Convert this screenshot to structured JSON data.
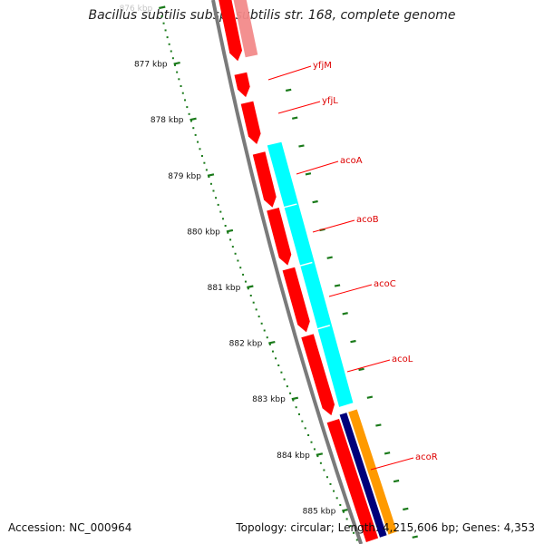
{
  "title": "Bacillus subtilis subsp. subtilis str. 168, complete genome",
  "footer": {
    "accession": "Accession: NC_000964",
    "summary": "Topology: circular; Length: 4,215,606 bp; Genes: 4,353"
  },
  "ruler": {
    "labels": [
      "876 kbp",
      "877 kbp",
      "878 kbp",
      "879 kbp",
      "880 kbp",
      "881 kbp",
      "882 kbp",
      "883 kbp",
      "884 kbp",
      "885 kbp"
    ]
  },
  "genes": [
    {
      "name": "yfjM"
    },
    {
      "name": "yfjL"
    },
    {
      "name": "acoA"
    },
    {
      "name": "acoB"
    },
    {
      "name": "acoC"
    },
    {
      "name": "acoL"
    },
    {
      "name": "acoR"
    }
  ],
  "colors": {
    "cds_red": "#ff0000",
    "cds_pink": "#f28a8a",
    "backbone": "#7a7a7a",
    "cyan": "#00ffff",
    "navy": "#00007a",
    "orange": "#ff9a00",
    "tick_green": "#1a7a1a"
  }
}
